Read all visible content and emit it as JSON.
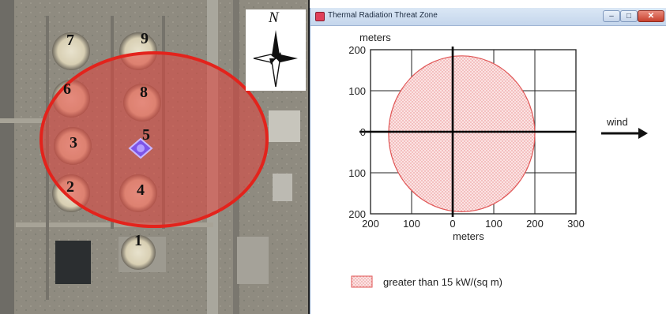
{
  "map": {
    "north_label": "N",
    "tank_labels": [
      "1",
      "2",
      "3",
      "4",
      "5",
      "6",
      "7",
      "8",
      "9"
    ],
    "threat_color": "#e1413a",
    "compass_icon": "compass-rose-icon",
    "source_marker_icon": "release-source-marker-icon"
  },
  "window": {
    "title": "Thermal Radiation Threat Zone",
    "minimize_glyph": "–",
    "maximize_glyph": "□",
    "close_glyph": "✕"
  },
  "plot": {
    "ylabel": "meters",
    "xlabel": "meters",
    "wind_label": "wind",
    "legend_label": "greater than 15 kW/(sq m)",
    "zone_color": "#e05555"
  },
  "chart_data": {
    "type": "scatter",
    "title": "",
    "xlabel": "meters",
    "ylabel": "meters",
    "xlim": [
      -200,
      300
    ],
    "ylim": [
      -200,
      200
    ],
    "x_ticks": [
      -200,
      -100,
      0,
      100,
      200,
      300
    ],
    "x_tick_labels": [
      "200",
      "100",
      "0",
      "100",
      "200",
      "300"
    ],
    "y_ticks": [
      200,
      100,
      0,
      -100,
      -200
    ],
    "y_tick_labels": [
      "200",
      "100",
      "0",
      "100",
      "200"
    ],
    "grid": true,
    "series": [
      {
        "name": "greater than 15 kW/(sq m)",
        "shape": "ellipse",
        "center": [
          22,
          -5
        ],
        "radius_x": 178,
        "radius_y": 190
      }
    ]
  }
}
